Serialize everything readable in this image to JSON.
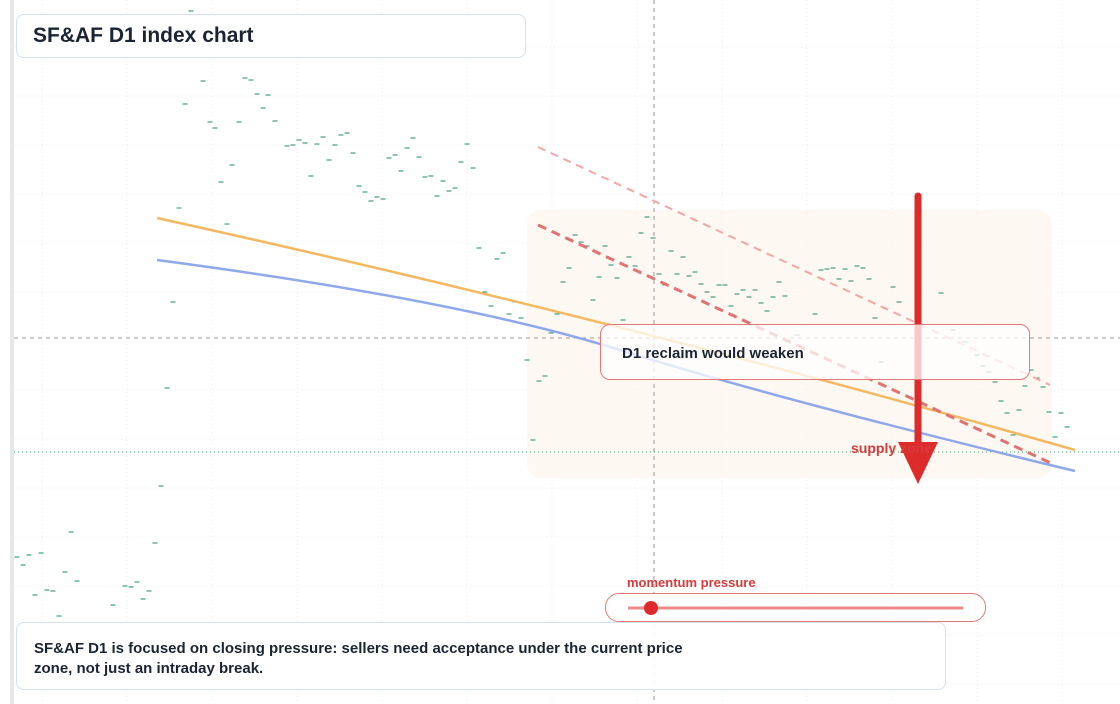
{
  "header": {
    "title": "SF&AF D1 index chart"
  },
  "annotations": {
    "reclaim": "D1 reclaim would weaken",
    "zone": "supply zone"
  },
  "slider": {
    "label": "momentum pressure"
  },
  "footer": {
    "text": "SF&AF D1 is focused on closing pressure: sellers need acceptance under the current price zone, not just an intraday break."
  }
}
